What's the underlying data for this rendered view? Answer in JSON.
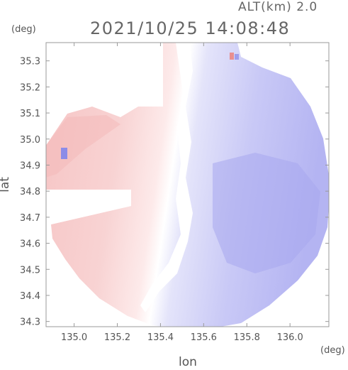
{
  "header": {
    "altitude_label": "ALT(km) 2.0",
    "timestamp": "2021/10/25 14:08:48"
  },
  "chart_data": {
    "type": "heatmap",
    "title": "2021/10/25 14:08:48",
    "subtitle": "ALT(km) 2.0",
    "xlabel": "lon",
    "ylabel": "lat",
    "x_unit": "(deg)",
    "y_unit": "(deg)",
    "xlim": [
      134.87,
      136.18
    ],
    "ylim": [
      34.28,
      35.37
    ],
    "x_ticks": [
      "135.0",
      "135.2",
      "135.4",
      "135.6",
      "135.8",
      "136.0"
    ],
    "y_ticks": [
      "34.3",
      "34.4",
      "34.5",
      "34.6",
      "34.7",
      "34.8",
      "34.9",
      "35.0",
      "35.1",
      "35.2",
      "35.3"
    ],
    "colors": {
      "positive": "#f2b3b3",
      "negative": "#a9a9f0",
      "neutral": "#ffffff",
      "frame": "#999999"
    },
    "grid": false,
    "legend": "none"
  }
}
